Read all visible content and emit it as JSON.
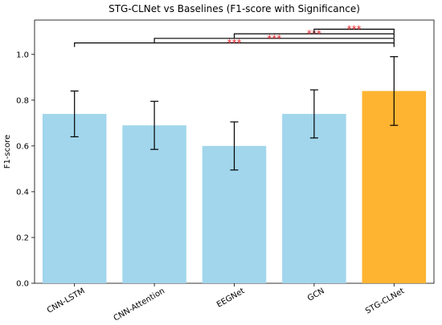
{
  "chart_data": {
    "type": "bar",
    "title": "STG-CLNet vs Baselines (F1-score with Significance)",
    "xlabel": "",
    "ylabel": "F1-score",
    "ylim": [
      0,
      1.15
    ],
    "yticks": [
      "0.0",
      "0.2",
      "0.4",
      "0.6",
      "0.8",
      "1.0"
    ],
    "grid": false,
    "categories": [
      "CNN-LSTM",
      "CNN-Attention",
      "EEGNet",
      "GCN",
      "STG-CLNet"
    ],
    "values": [
      0.74,
      0.69,
      0.6,
      0.74,
      0.84
    ],
    "errors": [
      0.1,
      0.105,
      0.105,
      0.105,
      0.15
    ],
    "colors": [
      "#a1d6ec",
      "#a1d6ec",
      "#a1d6ec",
      "#a1d6ec",
      "#ffb431"
    ],
    "significance": [
      {
        "from": "CNN-LSTM",
        "to": "STG-CLNet",
        "label": "***"
      },
      {
        "from": "CNN-Attention",
        "to": "STG-CLNet",
        "label": "***"
      },
      {
        "from": "EEGNet",
        "to": "STG-CLNet",
        "label": "***"
      },
      {
        "from": "GCN",
        "to": "STG-CLNet",
        "label": "***"
      }
    ],
    "significance_color": "#e8262c"
  }
}
